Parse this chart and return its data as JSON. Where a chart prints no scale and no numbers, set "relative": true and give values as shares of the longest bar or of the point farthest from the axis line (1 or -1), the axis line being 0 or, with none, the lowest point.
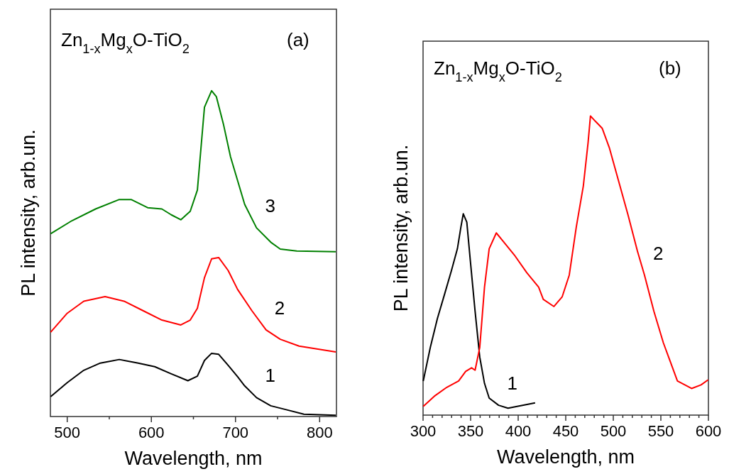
{
  "chart_data": [
    {
      "type": "line",
      "relative": true,
      "title": "Zn$_{1-x}$Mg$_{x}$O-TiO$_{2}$",
      "annotations": [
        "(a)"
      ],
      "xlabel": "Wavelength, nm",
      "ylabel": "PL intensity, arb.un.",
      "xlim": [
        480,
        820
      ],
      "xticks": [
        500,
        {
          "value": 550,
          "label": null
        },
        600,
        {
          "value": 650,
          "label": null
        },
        700,
        {
          "value": 750,
          "label": null
        },
        800
      ],
      "series": [
        {
          "name": "1",
          "color": "#000000",
          "x": [
            480.3,
            500,
            519.7,
            539.3,
            561.9,
            584.4,
            604,
            623.7,
            643.4,
            654.7,
            663.1,
            671.6,
            680,
            691.3,
            702.5,
            710.9,
            725,
            741.9,
            758.7,
            781.3,
            819.2
          ],
          "values": [
            0.061,
            0.104,
            0.142,
            0.164,
            0.175,
            0.164,
            0.153,
            0.131,
            0.11,
            0.124,
            0.172,
            0.194,
            0.191,
            0.157,
            0.122,
            0.094,
            0.058,
            0.033,
            0.022,
            0.007,
            0.004
          ]
        },
        {
          "name": "2",
          "color": "#ff0000",
          "x": [
            480.3,
            500,
            519.7,
            545,
            567.5,
            590,
            612.5,
            635,
            646.2,
            654.7,
            663.1,
            671.6,
            680,
            691.3,
            702.5,
            719.4,
            736.3,
            753.2,
            775.6,
            819.2
          ],
          "values": [
            0.259,
            0.317,
            0.354,
            0.368,
            0.354,
            0.325,
            0.296,
            0.281,
            0.296,
            0.332,
            0.426,
            0.484,
            0.488,
            0.448,
            0.39,
            0.325,
            0.266,
            0.237,
            0.216,
            0.198
          ]
        },
        {
          "name": "3",
          "color": "#008000",
          "x": [
            480.3,
            505.6,
            533.7,
            561.9,
            575.9,
            595.6,
            612.5,
            623.7,
            635,
            646.2,
            654.7,
            663.1,
            671.6,
            677.2,
            685.6,
            694.1,
            702.5,
            710.9,
            725,
            741.9,
            753.2,
            772.8,
            819.2
          ],
          "values": [
            0.561,
            0.601,
            0.637,
            0.666,
            0.666,
            0.641,
            0.637,
            0.619,
            0.604,
            0.63,
            0.695,
            0.949,
            1,
            0.982,
            0.898,
            0.797,
            0.724,
            0.651,
            0.579,
            0.535,
            0.514,
            0.508,
            0.506
          ]
        }
      ]
    },
    {
      "type": "line",
      "relative": true,
      "title": "Zn$_{1-x}$Mg$_{x}$O-TiO$_{2}$",
      "annotations": [
        "(b)"
      ],
      "xlabel": "Wavelength, nm",
      "ylabel": "PL intensity, arb.un.",
      "xlim": [
        300,
        600
      ],
      "xticks": [
        300,
        {
          "value": 310,
          "label": null
        },
        {
          "value": 320,
          "label": null
        },
        {
          "value": 330,
          "label": null
        },
        {
          "value": 340,
          "label": null
        },
        350,
        {
          "value": 360,
          "label": null
        },
        {
          "value": 370,
          "label": null
        },
        {
          "value": 380,
          "label": null
        },
        {
          "value": 390,
          "label": null
        },
        400,
        {
          "value": 410,
          "label": null
        },
        {
          "value": 420,
          "label": null
        },
        {
          "value": 430,
          "label": null
        },
        {
          "value": 440,
          "label": null
        },
        450,
        {
          "value": 460,
          "label": null
        },
        {
          "value": 470,
          "label": null
        },
        {
          "value": 480,
          "label": null
        },
        {
          "value": 490,
          "label": null
        },
        500,
        {
          "value": 510,
          "label": null
        },
        {
          "value": 520,
          "label": null
        },
        {
          "value": 530,
          "label": null
        },
        {
          "value": 540,
          "label": null
        },
        550,
        {
          "value": 560,
          "label": null
        },
        {
          "value": 570,
          "label": null
        },
        {
          "value": 580,
          "label": null
        },
        {
          "value": 590,
          "label": null
        },
        600
      ],
      "series": [
        {
          "name": "1",
          "color": "#000000",
          "x": [
            300.2,
            307.6,
            315.1,
            322.5,
            329.9,
            336.1,
            339.8,
            342.3,
            346,
            349.7,
            354.7,
            359.6,
            364.6,
            369.5,
            379.4,
            389.3,
            401.7,
            417.8
          ],
          "values": [
            0.114,
            0.226,
            0.323,
            0.403,
            0.484,
            0.556,
            0.629,
            0.673,
            0.645,
            0.516,
            0.347,
            0.194,
            0.106,
            0.057,
            0.033,
            0.023,
            0.031,
            0.041
          ]
        },
        {
          "name": "2",
          "color": "#ff0000",
          "x": [
            300.2,
            312.6,
            325,
            337.4,
            344.8,
            351,
            354.7,
            359.6,
            364.6,
            369.5,
            377,
            384.4,
            396.7,
            409.1,
            421.5,
            426.4,
            437.6,
            446.2,
            453.7,
            461.1,
            468.5,
            473.5,
            476,
            480.9,
            488.3,
            495.8,
            505.6,
            515.5,
            525.4,
            532.8,
            542.7,
            552.6,
            560,
            567.4,
            582.3,
            592.3,
            599.7
          ],
          "values": [
            0.029,
            0.065,
            0.093,
            0.114,
            0.146,
            0.158,
            0.15,
            0.226,
            0.428,
            0.556,
            0.609,
            0.58,
            0.532,
            0.476,
            0.428,
            0.387,
            0.363,
            0.395,
            0.468,
            0.629,
            0.766,
            0.911,
            1,
            0.983,
            0.959,
            0.894,
            0.782,
            0.669,
            0.548,
            0.468,
            0.347,
            0.242,
            0.178,
            0.114,
            0.089,
            0.101,
            0.118
          ]
        }
      ]
    }
  ]
}
